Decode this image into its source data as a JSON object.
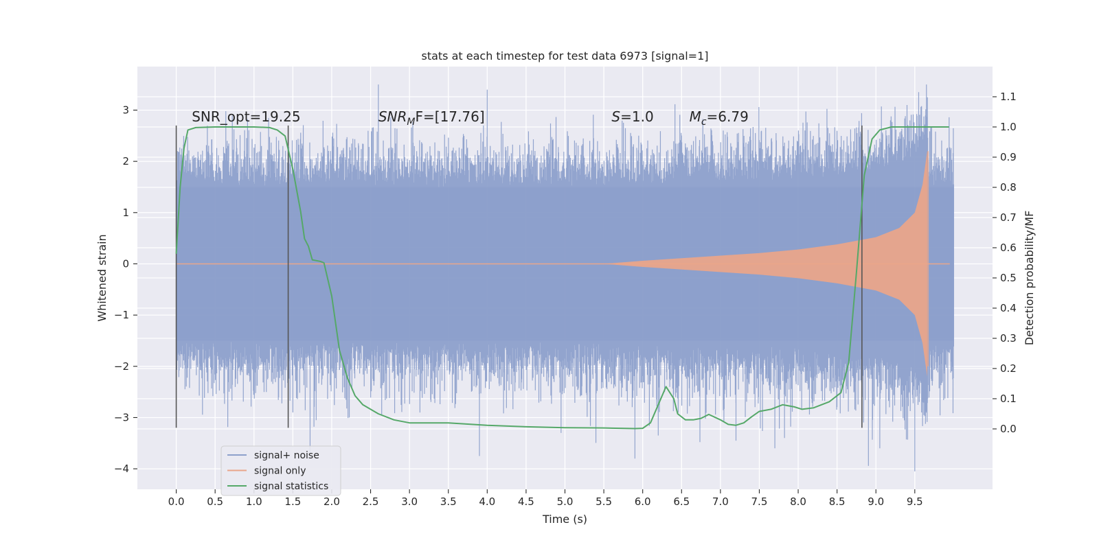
{
  "chart_data": {
    "type": "line",
    "title": "stats at each timestep for test data 6973 [signal=1]",
    "xlabel": "Time (s)",
    "ylabel": "Whitened strain",
    "ylabel_right": "Detection probability/MF",
    "xlim": [
      -0.5,
      10.5
    ],
    "ylim": [
      -4.4,
      3.85
    ],
    "ylim_right": [
      -0.2,
      1.2
    ],
    "x_ticks": [
      0.0,
      0.5,
      1.0,
      1.5,
      2.0,
      2.5,
      3.0,
      3.5,
      4.0,
      4.5,
      5.0,
      5.5,
      6.0,
      6.5,
      7.0,
      7.5,
      8.0,
      8.5,
      9.0,
      9.5
    ],
    "x_tick_labels": [
      "0.0",
      "0.5",
      "1.0",
      "1.5",
      "2.0",
      "2.5",
      "3.0",
      "3.5",
      "4.0",
      "4.5",
      "5.0",
      "5.5",
      "6.0",
      "6.5",
      "7.0",
      "7.5",
      "8.0",
      "8.5",
      "9.0",
      "9.5"
    ],
    "y_ticks": [
      3,
      2,
      1,
      0,
      -1,
      -2,
      -3,
      -4
    ],
    "y_tick_labels": [
      "3",
      "2",
      "1",
      "0",
      "−1",
      "−2",
      "−3",
      "−4"
    ],
    "y_right_ticks": [
      1.1,
      1.0,
      0.9,
      0.8,
      0.7,
      0.6,
      0.5,
      0.4,
      0.3,
      0.2,
      0.1,
      0.0
    ],
    "y_right_tick_labels": [
      "1.1",
      "1.0",
      "0.9",
      "0.8",
      "0.7",
      "0.6",
      "0.5",
      "0.4",
      "0.3",
      "0.2",
      "0.1",
      "0.0"
    ],
    "grid": true,
    "legend_position": "lower-left",
    "annotations": [
      {
        "text": "SNR_opt=19.25",
        "x": 0.2,
        "y": 2.75
      },
      {
        "text": "SNR",
        "sub": "M",
        "rest": "F=[17.76]",
        "italic": true,
        "x": 2.6,
        "y": 2.75
      },
      {
        "text": "S",
        "rest": "=1.0",
        "italic": true,
        "x": 5.6,
        "y": 2.75
      },
      {
        "text": "M",
        "sub": "c",
        "rest": "=6.79",
        "italic": true,
        "x": 6.6,
        "y": 2.75
      }
    ],
    "vlines": [
      {
        "x": 0.0,
        "y0": -3.2,
        "y1": 2.7
      },
      {
        "x": 1.44,
        "y0": -3.2,
        "y1": 2.7
      },
      {
        "x": 8.82,
        "y0": -3.2,
        "y1": 2.7
      }
    ],
    "series": [
      {
        "name": "signal+ noise",
        "color": "#8da0cb",
        "kind": "noise",
        "x_range": [
          0.0,
          10.0
        ],
        "core_amplitude": 1.5,
        "peak_max": 3.5,
        "peak_min": -4.05
      },
      {
        "name": "signal only",
        "color": "#e9a58a",
        "kind": "chirp",
        "envelope": [
          [
            0.0,
            0.0
          ],
          [
            5.5,
            0.0
          ],
          [
            6.0,
            0.06
          ],
          [
            6.5,
            0.11
          ],
          [
            7.0,
            0.16
          ],
          [
            7.5,
            0.21
          ],
          [
            8.0,
            0.28
          ],
          [
            8.5,
            0.38
          ],
          [
            9.0,
            0.52
          ],
          [
            9.3,
            0.7
          ],
          [
            9.5,
            1.0
          ],
          [
            9.6,
            1.55
          ],
          [
            9.66,
            2.2
          ],
          [
            9.68,
            0.0
          ],
          [
            9.95,
            0.0
          ]
        ]
      },
      {
        "name": "signal statistics",
        "color": "#55a868",
        "kind": "line",
        "axis": "right",
        "points": [
          [
            0.0,
            0.58
          ],
          [
            0.05,
            0.8
          ],
          [
            0.1,
            0.93
          ],
          [
            0.15,
            0.99
          ],
          [
            0.25,
            0.998
          ],
          [
            0.5,
            1.0
          ],
          [
            1.0,
            1.0
          ],
          [
            1.2,
            0.998
          ],
          [
            1.3,
            0.99
          ],
          [
            1.4,
            0.97
          ],
          [
            1.5,
            0.86
          ],
          [
            1.6,
            0.72
          ],
          [
            1.65,
            0.63
          ],
          [
            1.7,
            0.605
          ],
          [
            1.75,
            0.56
          ],
          [
            1.85,
            0.555
          ],
          [
            1.9,
            0.55
          ],
          [
            2.0,
            0.44
          ],
          [
            2.1,
            0.26
          ],
          [
            2.2,
            0.17
          ],
          [
            2.3,
            0.11
          ],
          [
            2.4,
            0.08
          ],
          [
            2.6,
            0.05
          ],
          [
            2.8,
            0.03
          ],
          [
            3.0,
            0.02
          ],
          [
            3.5,
            0.02
          ],
          [
            4.0,
            0.012
          ],
          [
            4.5,
            0.007
          ],
          [
            5.0,
            0.004
          ],
          [
            5.5,
            0.003
          ],
          [
            5.9,
            0.001
          ],
          [
            6.0,
            0.002
          ],
          [
            6.1,
            0.02
          ],
          [
            6.2,
            0.08
          ],
          [
            6.3,
            0.14
          ],
          [
            6.4,
            0.1
          ],
          [
            6.45,
            0.05
          ],
          [
            6.55,
            0.03
          ],
          [
            6.65,
            0.03
          ],
          [
            6.75,
            0.035
          ],
          [
            6.85,
            0.048
          ],
          [
            7.0,
            0.03
          ],
          [
            7.1,
            0.015
          ],
          [
            7.2,
            0.012
          ],
          [
            7.3,
            0.02
          ],
          [
            7.4,
            0.04
          ],
          [
            7.5,
            0.058
          ],
          [
            7.65,
            0.065
          ],
          [
            7.8,
            0.08
          ],
          [
            7.95,
            0.073
          ],
          [
            8.05,
            0.065
          ],
          [
            8.2,
            0.07
          ],
          [
            8.4,
            0.09
          ],
          [
            8.55,
            0.12
          ],
          [
            8.65,
            0.22
          ],
          [
            8.75,
            0.52
          ],
          [
            8.85,
            0.84
          ],
          [
            8.95,
            0.96
          ],
          [
            9.05,
            0.99
          ],
          [
            9.2,
            1.0
          ],
          [
            9.5,
            1.0
          ],
          [
            9.94,
            1.0
          ]
        ]
      }
    ]
  }
}
